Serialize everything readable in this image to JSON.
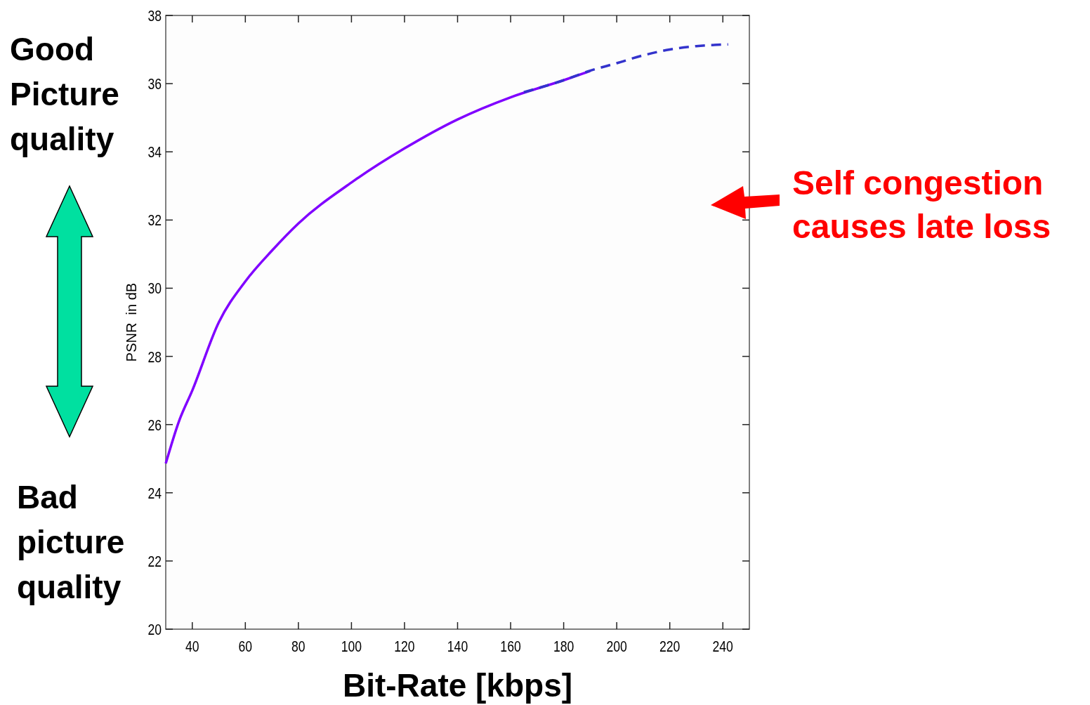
{
  "chart_data": {
    "type": "line",
    "xlabel": "Bit-Rate [kbps]",
    "ylabel": "PSNR  in dB",
    "xlim": [
      30,
      250
    ],
    "xticks": [
      40,
      60,
      80,
      100,
      120,
      140,
      160,
      180,
      200,
      220,
      240
    ],
    "ylim": [
      20,
      38
    ],
    "yticks": [
      20,
      22,
      24,
      26,
      28,
      30,
      32,
      34,
      36,
      38
    ],
    "grid": false,
    "series": [
      {
        "color": "#8000ff",
        "line_style": "solid",
        "x": [
          30,
          35,
          40,
          50,
          60,
          70,
          80,
          100,
          120,
          140,
          160,
          180,
          190
        ],
        "values": [
          24.86,
          26.1,
          27.0,
          29.0,
          30.2,
          31.1,
          31.9,
          33.1,
          34.1,
          34.95,
          35.6,
          36.1,
          36.37
        ]
      },
      {
        "color": "#3333cc",
        "line_style": "dashed",
        "x": [
          165,
          180,
          190,
          200,
          210,
          220,
          230,
          242
        ],
        "values": [
          35.75,
          36.1,
          36.38,
          36.6,
          36.83,
          37.0,
          37.1,
          37.15
        ]
      }
    ],
    "annotations": [
      "Good\nPicture\nquality",
      "Bad\npicture\nquality",
      "Self congestion\ncauses late loss"
    ]
  }
}
